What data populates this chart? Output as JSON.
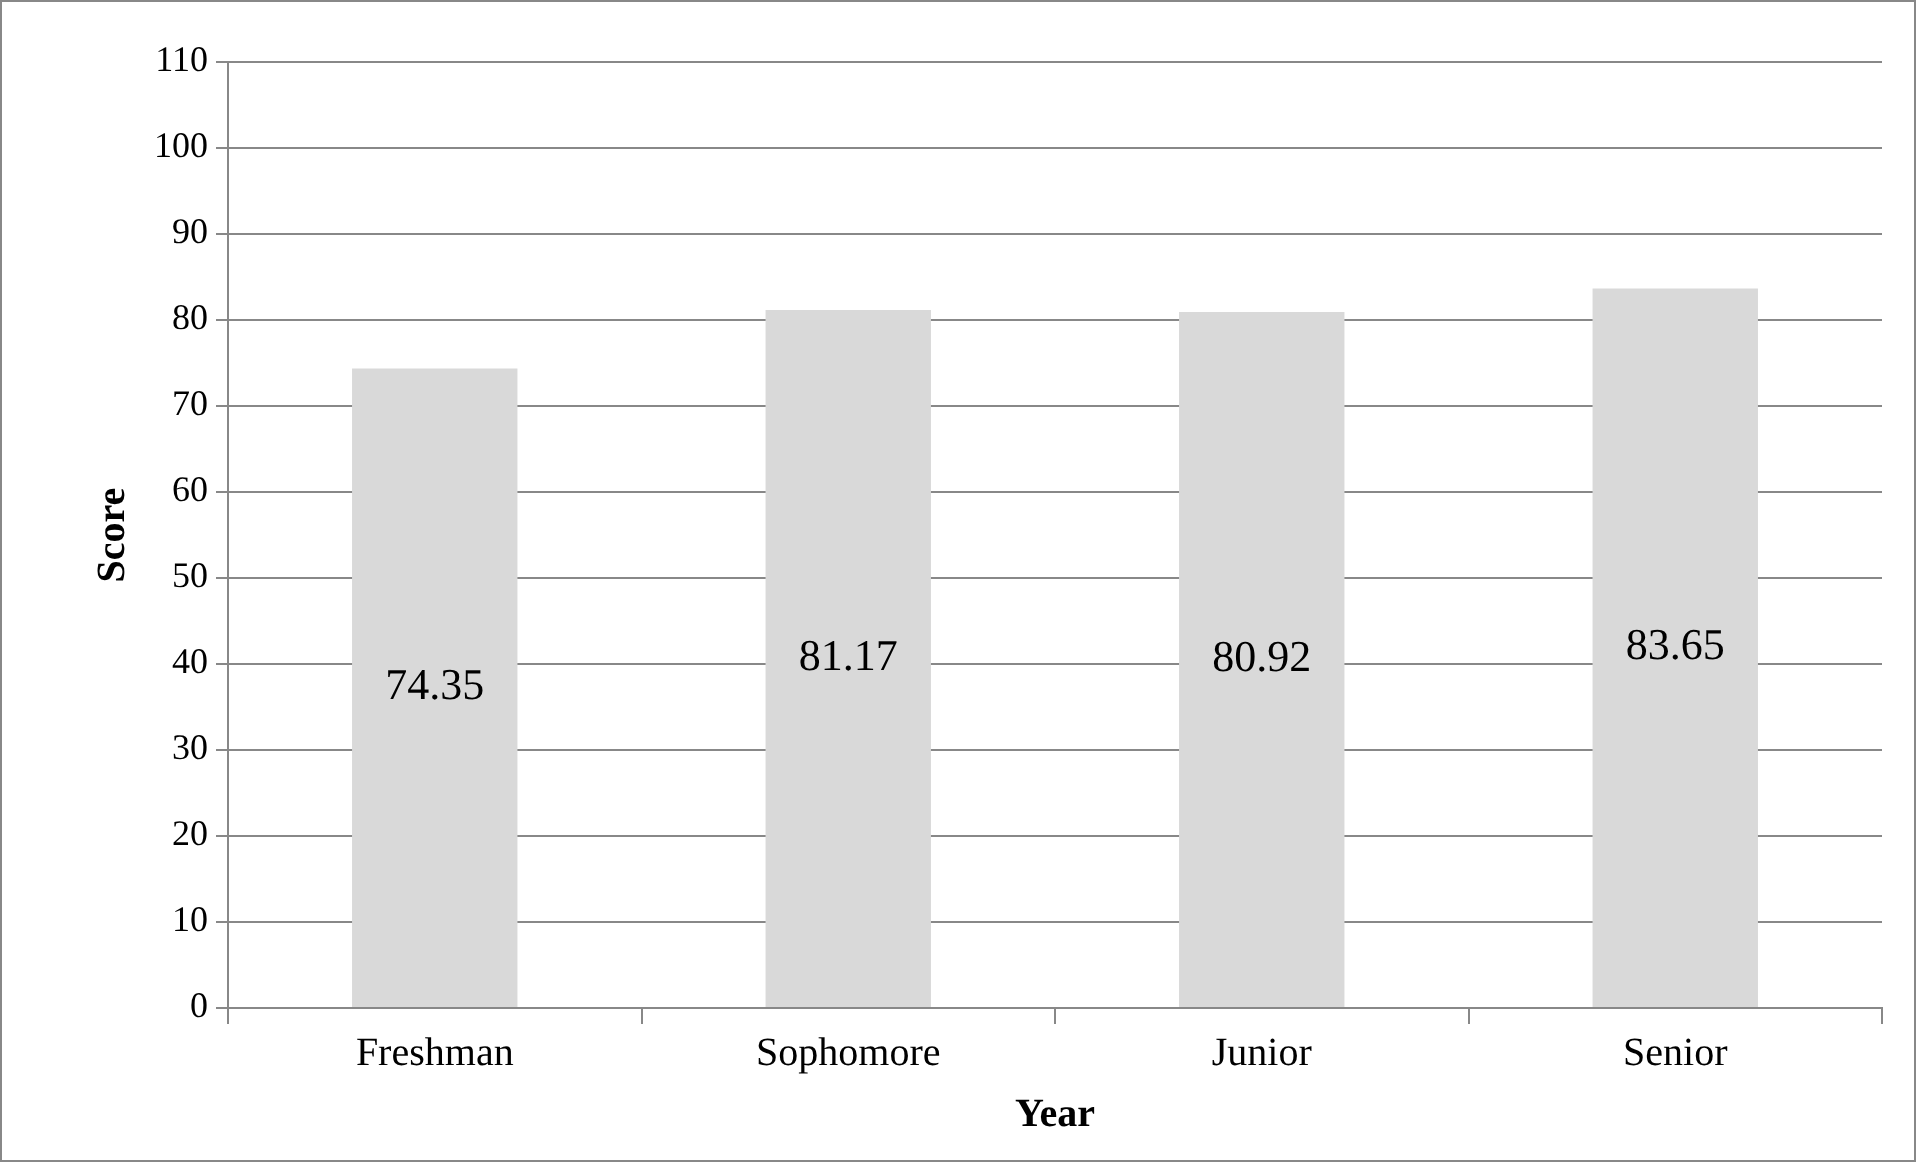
{
  "chart_data": {
    "type": "bar",
    "xlabel": "Year",
    "ylabel": "Score",
    "categories": [
      "Freshman",
      "Sophomore",
      "Junior",
      "Senior"
    ],
    "values": [
      74.35,
      81.17,
      80.92,
      83.65
    ],
    "color": "#d9d9d9",
    "ylim": [
      0,
      110
    ],
    "yticks": [
      0,
      10,
      20,
      30,
      40,
      50,
      60,
      70,
      80,
      90,
      100,
      110
    ],
    "grid": "y",
    "data_labels": true
  }
}
